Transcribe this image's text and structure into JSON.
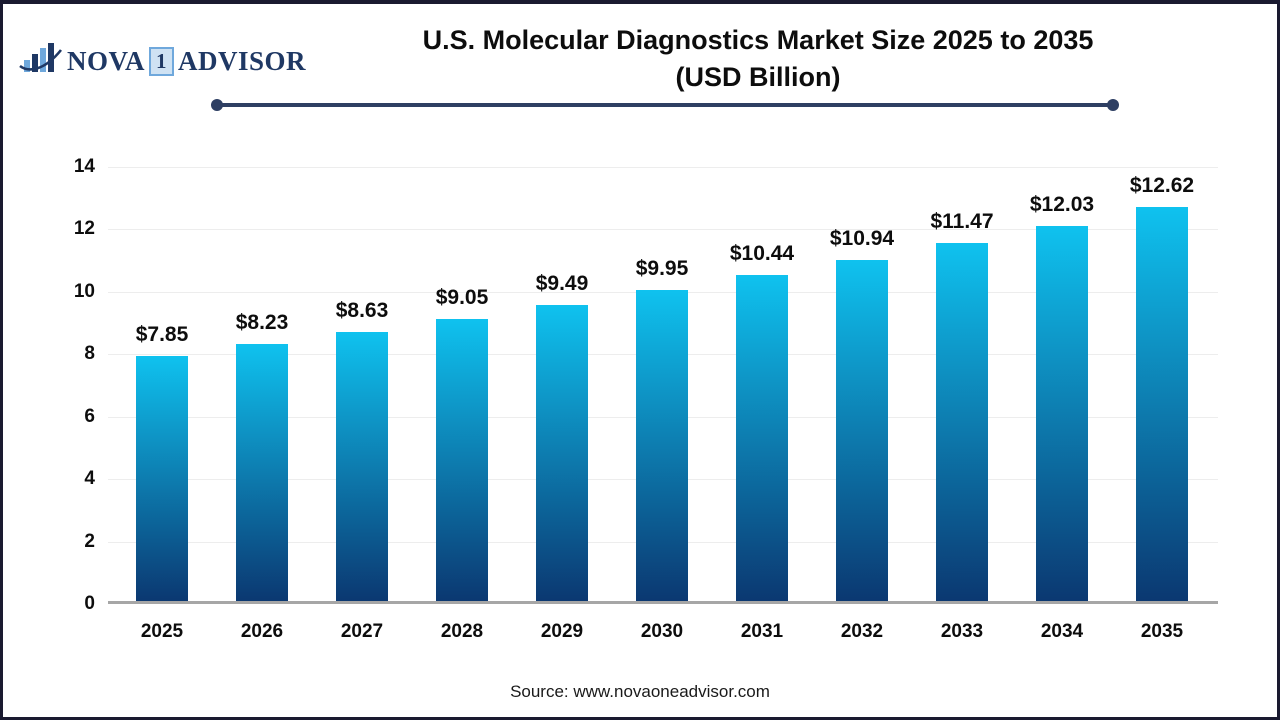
{
  "theme": {
    "accent_color": "#2e3f63",
    "logo_navy": "#1f3864",
    "logo_light_blue": "#6fa8dc",
    "axis_line_color": "#a6a6a6",
    "gridline_color": "#ededed"
  },
  "logo": {
    "icon": "bar-chart-swoosh-icon",
    "nova": "NOVA",
    "one": "1",
    "advisor": "ADVISOR"
  },
  "title": {
    "line1": "U.S. Molecular Diagnostics Market Size 2025 to 2035",
    "line2": "(USD Billion)"
  },
  "source": "Source: www.novaoneadvisor.com",
  "chart_data": {
    "type": "bar",
    "title": "U.S. Molecular Diagnostics Market Size 2025 to 2035 (USD Billion)",
    "categories": [
      "2025",
      "2026",
      "2027",
      "2028",
      "2029",
      "2030",
      "2031",
      "2032",
      "2033",
      "2034",
      "2035"
    ],
    "values": [
      7.85,
      8.23,
      8.63,
      9.05,
      9.49,
      9.95,
      10.44,
      10.94,
      11.47,
      12.03,
      12.62
    ],
    "value_labels": [
      "$7.85",
      "$8.23",
      "$8.63",
      "$9.05",
      "$9.49",
      "$9.95",
      "$10.44",
      "$10.94",
      "$11.47",
      "$12.03",
      "$12.62"
    ],
    "xlabel": "",
    "ylabel": "",
    "ylim": [
      0,
      14
    ],
    "yticks": [
      0,
      2,
      4,
      6,
      8,
      10,
      12,
      14
    ],
    "grid": true,
    "legend": "none",
    "bar_gradient_top": "#0fc2ef",
    "bar_gradient_bottom": "#0b3871"
  }
}
